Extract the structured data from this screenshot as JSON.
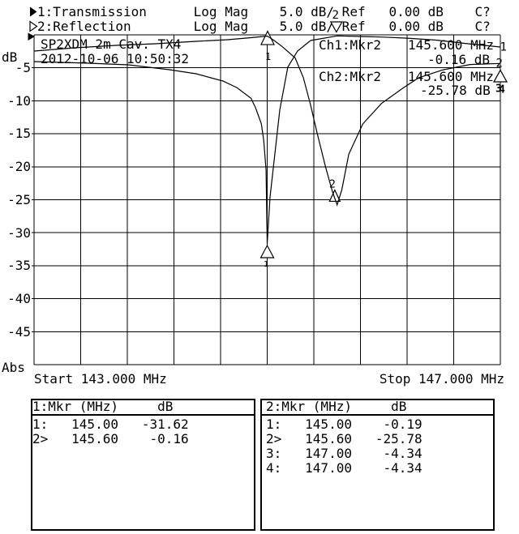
{
  "header": {
    "line1": "1:Transmission      Log Mag    5.0 dB/ Ref   0.00 dB    C?",
    "line2": "2:Reflection        Log Mag    5.0 dB/ Ref   0.00 dB    C?"
  },
  "plot": {
    "title": "SP2XDM 2m Cav. TX4",
    "timestamp": "2012-10-06 10:50:32",
    "y_axis_unit": "dB",
    "y_axis_bottom_label": "Abs",
    "y_ticks": [
      "-5",
      "-10",
      "-15",
      "-20",
      "-25",
      "-30",
      "-35",
      "-40",
      "-45"
    ],
    "x_start_label": "Start 143.000 MHz",
    "x_stop_label": "Stop 147.000 MHz",
    "readouts": {
      "ch1_label": "Ch1:Mkr2",
      "ch1_freq": "145.600 MHz",
      "ch1_value": "-0.16 dB",
      "ch2_label": "Ch2:Mkr2",
      "ch2_freq": "145.600 MHz",
      "ch2_value": "-25.78 dB"
    },
    "trace_end_labels": {
      "trace1": "1",
      "trace2": "2"
    }
  },
  "marker_tables": [
    {
      "header": "1:Mkr (MHz)     dB",
      "rows": [
        "1:   145.00   -31.62",
        "2>   145.60    -0.16"
      ]
    },
    {
      "header": "2:Mkr (MHz)     dB",
      "rows": [
        "1:   145.00    -0.19",
        "2>   145.60   -25.78",
        "3:   147.00    -4.34",
        "4:   147.00    -4.34"
      ]
    }
  ],
  "chart_data": {
    "type": "line",
    "title": "SP2XDM 2m Cav. TX4",
    "x_unit": "MHz",
    "x_start": 143.0,
    "x_stop": 147.0,
    "y_unit": "dB",
    "ylim": [
      -50,
      0
    ],
    "y_per_division": 5,
    "grid": "on",
    "series": [
      {
        "name": "1:Transmission",
        "scale_db_per_div": 5.0,
        "ref_db": 0.0,
        "x": [
          143.0,
          143.47,
          143.81,
          144.16,
          144.39,
          144.62,
          144.74,
          144.86,
          144.9,
          144.95,
          144.97,
          144.99,
          145.0,
          145.024,
          145.108,
          145.177,
          145.26,
          145.372,
          145.6,
          145.8,
          146.0,
          146.2,
          146.45,
          146.7,
          147.0
        ],
        "y": [
          -4.05,
          -4.3,
          -4.55,
          -5.28,
          -5.9,
          -7.0,
          -8.0,
          -9.6,
          -11.05,
          -13.5,
          -16.0,
          -20.5,
          -31.62,
          -24.6,
          -11.4,
          -4.9,
          -2.46,
          -0.86,
          -0.16,
          -0.25,
          -0.35,
          -0.5,
          -0.8,
          -1.3,
          -1.84
        ]
      },
      {
        "name": "2:Reflection",
        "scale_db_per_div": 5.0,
        "ref_db": 0.0,
        "x": [
          143.0,
          143.35,
          143.7,
          144.04,
          144.39,
          144.66,
          144.86,
          145.0,
          145.06,
          145.13,
          145.24,
          145.31,
          145.37,
          145.43,
          145.5,
          145.56,
          145.6,
          145.64,
          145.7,
          145.82,
          145.98,
          146.17,
          146.3,
          146.51,
          146.74,
          147.0
        ],
        "y": [
          -2.46,
          -1.97,
          -1.6,
          -1.35,
          -0.98,
          -0.74,
          -0.43,
          -0.19,
          -0.86,
          -1.8,
          -3.5,
          -6.5,
          -10.5,
          -15.0,
          -20.0,
          -23.8,
          -25.78,
          -23.5,
          -18.1,
          -13.5,
          -10.4,
          -8.0,
          -6.5,
          -5.3,
          -4.5,
          -4.34
        ]
      }
    ],
    "markers": [
      {
        "channel": 1,
        "marker": 1,
        "freq_mhz": 145.0,
        "db": -31.62,
        "active": false
      },
      {
        "channel": 1,
        "marker": 2,
        "freq_mhz": 145.6,
        "db": -0.16,
        "active": true
      },
      {
        "channel": 2,
        "marker": 1,
        "freq_mhz": 145.0,
        "db": -0.19,
        "active": false
      },
      {
        "channel": 2,
        "marker": 2,
        "freq_mhz": 145.6,
        "db": -25.78,
        "active": true
      },
      {
        "channel": 2,
        "marker": 3,
        "freq_mhz": 147.0,
        "db": -4.34,
        "active": false
      },
      {
        "channel": 2,
        "marker": 4,
        "freq_mhz": 147.0,
        "db": -4.34,
        "active": false
      }
    ]
  }
}
